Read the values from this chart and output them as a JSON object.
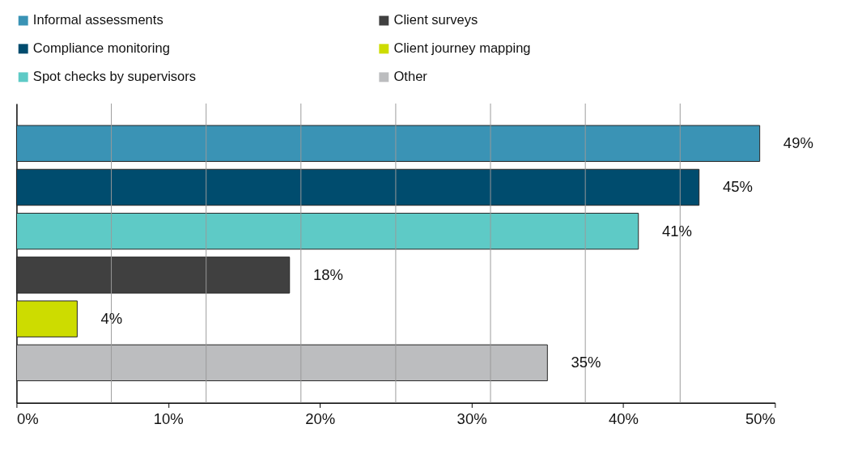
{
  "chart_data": {
    "type": "bar",
    "orientation": "horizontal",
    "categories": [
      null
    ],
    "series": [
      {
        "name": "Informal assessments",
        "color": "#3a93b5",
        "values": [
          49
        ],
        "value_labels": [
          "49%"
        ]
      },
      {
        "name": "Compliance monitoring",
        "color": "#004c6e",
        "values": [
          45
        ],
        "value_labels": [
          "45%"
        ]
      },
      {
        "name": "Spot checks by supervisors",
        "color": "#5ecac6",
        "values": [
          41
        ],
        "value_labels": [
          "41%"
        ]
      },
      {
        "name": "Client surveys",
        "color": "#404040",
        "values": [
          18
        ],
        "value_labels": [
          "18%"
        ]
      },
      {
        "name": "Client journey mapping",
        "color": "#cddc00",
        "values": [
          4
        ],
        "value_labels": [
          "4%"
        ]
      },
      {
        "name": "Other",
        "color": "#bcbdbf",
        "values": [
          35
        ],
        "value_labels": [
          "35%"
        ]
      }
    ],
    "xlim": [
      0,
      50
    ],
    "xticks": [
      {
        "value": 0,
        "label": "0%"
      },
      {
        "value": 6.25,
        "label": null
      },
      {
        "value": 10,
        "label": "10%"
      },
      {
        "value": 12.5,
        "label": null
      },
      {
        "value": 18.75,
        "label": null
      },
      {
        "value": 20,
        "label": "20%"
      },
      {
        "value": 25,
        "label": null
      },
      {
        "value": 30,
        "label": "30%"
      },
      {
        "value": 31.25,
        "label": null
      },
      {
        "value": 37.5,
        "label": null
      },
      {
        "value": 40,
        "label": "40%"
      },
      {
        "value": 43.75,
        "label": null
      },
      {
        "value": 50,
        "label": "50%"
      }
    ],
    "grid": true,
    "legend": "top",
    "tick_labels": "x"
  }
}
